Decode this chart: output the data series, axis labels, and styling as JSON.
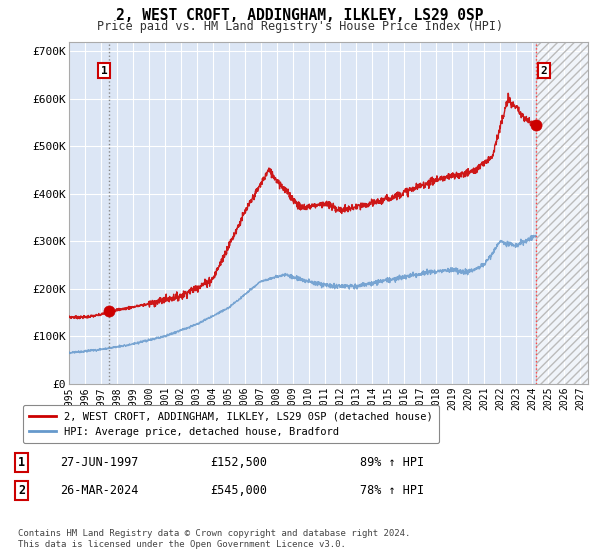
{
  "title": "2, WEST CROFT, ADDINGHAM, ILKLEY, LS29 0SP",
  "subtitle": "Price paid vs. HM Land Registry's House Price Index (HPI)",
  "ylim": [
    0,
    720000
  ],
  "yticks": [
    0,
    100000,
    200000,
    300000,
    400000,
    500000,
    600000,
    700000
  ],
  "ytick_labels": [
    "£0",
    "£100K",
    "£200K",
    "£300K",
    "£400K",
    "£500K",
    "£600K",
    "£700K"
  ],
  "xlim_start": 1995.0,
  "xlim_end": 2027.5,
  "xticks": [
    1995,
    1996,
    1997,
    1998,
    1999,
    2000,
    2001,
    2002,
    2003,
    2004,
    2005,
    2006,
    2007,
    2008,
    2009,
    2010,
    2011,
    2012,
    2013,
    2014,
    2015,
    2016,
    2017,
    2018,
    2019,
    2020,
    2021,
    2022,
    2023,
    2024,
    2025,
    2026,
    2027
  ],
  "fig_bg": "#ffffff",
  "plot_bg": "#dce6f5",
  "grid_color": "#ffffff",
  "legend_entries": [
    "2, WEST CROFT, ADDINGHAM, ILKLEY, LS29 0SP (detached house)",
    "HPI: Average price, detached house, Bradford"
  ],
  "legend_colors": [
    "#cc0000",
    "#6699cc"
  ],
  "sale1_date": 1997.49,
  "sale1_price": 152500,
  "sale1_label": "1",
  "sale2_date": 2024.23,
  "sale2_price": 545000,
  "sale2_label": "2",
  "annotation1": [
    "1",
    "27-JUN-1997",
    "£152,500",
    "89% ↑ HPI"
  ],
  "annotation2": [
    "2",
    "26-MAR-2024",
    "£545,000",
    "78% ↑ HPI"
  ],
  "footnote": "Contains HM Land Registry data © Crown copyright and database right 2024.\nThis data is licensed under the Open Government Licence v3.0.",
  "hatched_region_start": 2024.23,
  "hatched_region_end": 2027.5
}
